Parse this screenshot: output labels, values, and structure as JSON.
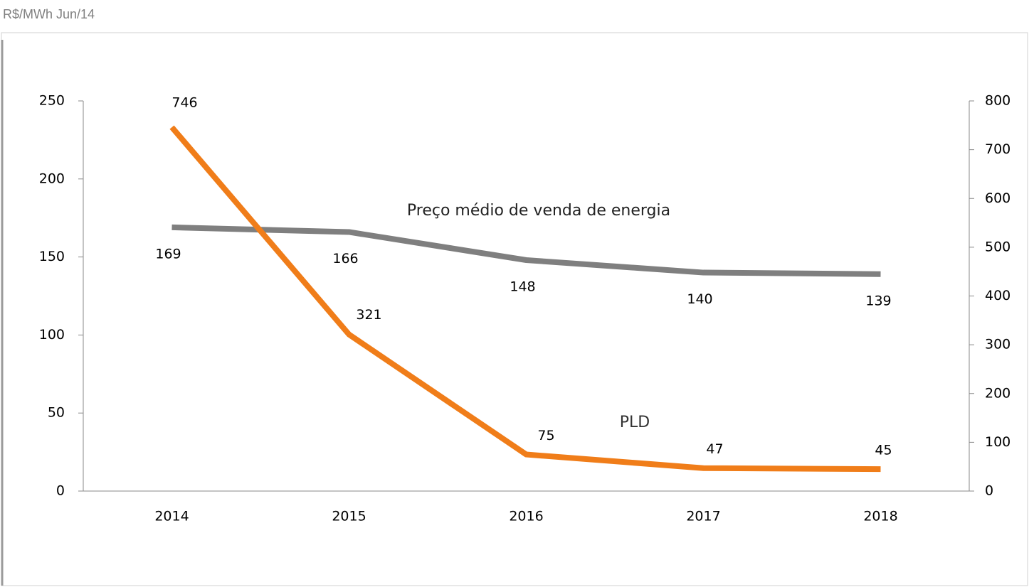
{
  "chart_data": {
    "type": "line",
    "title": "R$/MWh Jun/14",
    "categories": [
      "2014",
      "2015",
      "2016",
      "2017",
      "2018"
    ],
    "series": [
      {
        "name": "Preço médio de venda de energia",
        "color": "#7f7f7f",
        "values": [
          169,
          166,
          148,
          140,
          139
        ]
      },
      {
        "name": "PLD",
        "color": "#f07d19",
        "axis": "y2",
        "values": [
          746,
          321,
          75,
          47,
          45
        ]
      }
    ],
    "ylim": [
      0,
      250
    ],
    "yticks": [
      0,
      50,
      100,
      150,
      200,
      250
    ],
    "y2lim": [
      0,
      800
    ],
    "y2ticks": [
      0,
      100,
      200,
      300,
      400,
      500,
      600,
      700,
      800
    ]
  }
}
